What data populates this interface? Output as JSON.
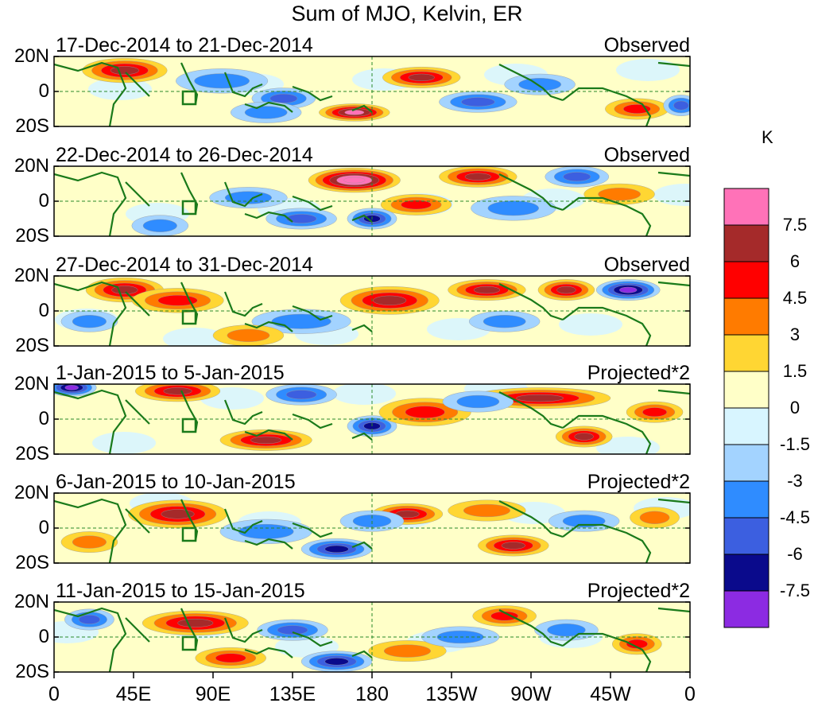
{
  "title": "Sum of MJO, Kelvin, ER",
  "colorbar": {
    "unit": "K",
    "levels": [
      "7.5",
      "6",
      "4.5",
      "3",
      "1.5",
      "0",
      "-1.5",
      "-3",
      "-4.5",
      "-6",
      "-7.5"
    ],
    "colors": [
      "#ff72b8",
      "#a52a2a",
      "#ff0000",
      "#ff7b00",
      "#ffd633",
      "#ffffc8",
      "#d8f5ff",
      "#a3d3ff",
      "#2f8cff",
      "#3c5fe0",
      "#0a0a8c",
      "#8c2be2"
    ]
  },
  "y_labels": [
    "20N",
    "0",
    "20S"
  ],
  "x_labels": [
    "0",
    "45E",
    "90E",
    "135E",
    "180",
    "135W",
    "90W",
    "45W",
    "0"
  ],
  "panels": [
    {
      "dates": "17-Dec-2014 to 21-Dec-2014",
      "label": "Observed"
    },
    {
      "dates": "22-Dec-2014 to 26-Dec-2014",
      "label": "Observed"
    },
    {
      "dates": "27-Dec-2014 to 31-Dec-2014",
      "label": "Observed"
    },
    {
      "dates": "1-Jan-2015 to 5-Jan-2015",
      "label": "Projected*2"
    },
    {
      "dates": "6-Jan-2015 to 10-Jan-2015",
      "label": "Projected*2"
    },
    {
      "dates": "11-Jan-2015 to 15-Jan-2015",
      "label": "Projected*2"
    }
  ],
  "anomalies": [
    [
      [
        40,
        12,
        24,
        7,
        6
      ],
      [
        130,
        -4,
        18,
        6,
        -4
      ],
      [
        170,
        -12,
        20,
        5,
        7
      ],
      [
        208,
        8,
        22,
        6,
        5
      ],
      [
        240,
        -6,
        22,
        6,
        -4
      ],
      [
        275,
        4,
        20,
        6,
        -3
      ],
      [
        330,
        -10,
        18,
        6,
        4
      ],
      [
        355,
        -8,
        10,
        6,
        -4
      ],
      [
        95,
        6,
        26,
        7,
        -3
      ],
      [
        120,
        -12,
        20,
        6,
        -3
      ]
    ],
    [
      [
        170,
        12,
        26,
        7,
        8
      ],
      [
        205,
        -2,
        20,
        6,
        4
      ],
      [
        240,
        14,
        22,
        6,
        5
      ],
      [
        260,
        -4,
        24,
        7,
        -3
      ],
      [
        296,
        14,
        18,
        6,
        -4
      ],
      [
        320,
        4,
        20,
        6,
        3
      ],
      [
        140,
        -10,
        20,
        6,
        -4
      ],
      [
        180,
        -10,
        14,
        6,
        -6
      ],
      [
        110,
        2,
        22,
        6,
        -3
      ],
      [
        60,
        -14,
        16,
        6,
        -3
      ]
    ],
    [
      [
        40,
        12,
        22,
        7,
        5
      ],
      [
        70,
        6,
        26,
        7,
        4
      ],
      [
        190,
        6,
        28,
        8,
        5
      ],
      [
        245,
        12,
        22,
        6,
        5
      ],
      [
        290,
        12,
        16,
        6,
        5
      ],
      [
        325,
        12,
        18,
        6,
        -7
      ],
      [
        255,
        -6,
        20,
        6,
        -3
      ],
      [
        140,
        -6,
        28,
        7,
        -3
      ],
      [
        110,
        -14,
        20,
        6,
        3
      ],
      [
        20,
        -6,
        16,
        6,
        -2
      ]
    ],
    [
      [
        10,
        18,
        14,
        5,
        -7
      ],
      [
        70,
        16,
        24,
        6,
        5
      ],
      [
        140,
        14,
        20,
        6,
        -4
      ],
      [
        180,
        -4,
        14,
        6,
        -6
      ],
      [
        210,
        4,
        26,
        8,
        4
      ],
      [
        275,
        12,
        40,
        6,
        6
      ],
      [
        300,
        -10,
        16,
        6,
        5
      ],
      [
        340,
        4,
        16,
        6,
        4
      ],
      [
        120,
        -12,
        26,
        6,
        5
      ],
      [
        240,
        10,
        20,
        6,
        -3
      ]
    ],
    [
      [
        70,
        8,
        28,
        8,
        6
      ],
      [
        120,
        -2,
        26,
        7,
        -3
      ],
      [
        160,
        -12,
        20,
        6,
        -6
      ],
      [
        200,
        8,
        20,
        6,
        5
      ],
      [
        245,
        10,
        22,
        6,
        3
      ],
      [
        260,
        -10,
        20,
        6,
        5
      ],
      [
        300,
        4,
        20,
        6,
        -3
      ],
      [
        340,
        6,
        14,
        6,
        3
      ],
      [
        20,
        -8,
        16,
        6,
        3
      ],
      [
        180,
        4,
        18,
        6,
        -2
      ]
    ],
    [
      [
        80,
        8,
        30,
        7,
        6
      ],
      [
        135,
        4,
        20,
        6,
        -4
      ],
      [
        160,
        -14,
        20,
        6,
        -6
      ],
      [
        100,
        -12,
        20,
        6,
        4
      ],
      [
        200,
        -8,
        22,
        6,
        3
      ],
      [
        255,
        12,
        18,
        6,
        4
      ],
      [
        290,
        4,
        18,
        6,
        -3
      ],
      [
        330,
        -4,
        14,
        6,
        4
      ],
      [
        20,
        10,
        14,
        6,
        -4
      ],
      [
        230,
        0,
        22,
        6,
        -2
      ]
    ]
  ]
}
